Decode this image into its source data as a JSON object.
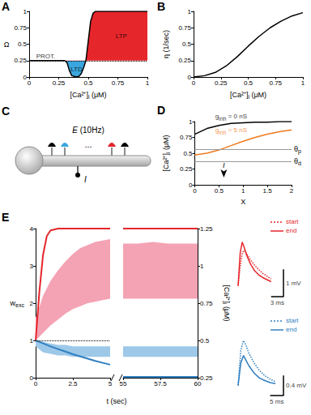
{
  "chart_data": [
    {
      "title": "A",
      "type": "area",
      "x_label": {
        "base": "[Ca²⁺]",
        "sub": "i",
        "rest": " (μM)"
      },
      "y_label": "Ω",
      "xlim": [
        0,
        1
      ],
      "xticks": [
        0,
        0.25,
        0.5,
        0.75,
        1
      ],
      "ylim": [
        0,
        1
      ],
      "yticks": [
        0,
        0.25,
        0.5,
        0.75,
        1
      ],
      "grid": false,
      "x": [
        0,
        0.1,
        0.2,
        0.3,
        0.32,
        0.34,
        0.36,
        0.4,
        0.42,
        0.44,
        0.46,
        0.48,
        0.5,
        0.52,
        0.54,
        0.56,
        0.6,
        0.7,
        0.8,
        0.9,
        1
      ],
      "series": [
        {
          "color": "#000000",
          "values": [
            0.25,
            0.25,
            0.25,
            0.25,
            0.22,
            0.1,
            0.02,
            0,
            0.01,
            0.05,
            0.14,
            0.25,
            0.55,
            0.85,
            0.97,
            1,
            1,
            1,
            1,
            1,
            1
          ]
        }
      ],
      "colors": [
        "#3aa6dd",
        "#e5262b"
      ],
      "reference_line": {
        "y": 0.25,
        "line_style": "dotted"
      },
      "annotations": [
        {
          "text": "PROT.",
          "x": 0.14,
          "y": 0.32
        },
        {
          "text": "LTD",
          "x": 0.4,
          "y": 0.12
        },
        {
          "text": "LTP",
          "x": 0.78,
          "y": 0.62
        }
      ]
    },
    {
      "title": "B",
      "type": "line",
      "x_label": {
        "base": "[Ca²⁺]",
        "sub": "i",
        "rest": " (μM)"
      },
      "y_label": "η (1/sec)",
      "xlim": [
        0,
        1
      ],
      "xticks": [
        0,
        0.25,
        0.5,
        0.75,
        1
      ],
      "ylim": [
        0,
        1
      ],
      "yticks": [
        0,
        0.25,
        0.5,
        0.75,
        1
      ],
      "grid": false,
      "x": [
        0,
        0.1,
        0.2,
        0.3,
        0.4,
        0.5,
        0.6,
        0.7,
        0.8,
        0.9,
        1
      ],
      "series": [
        {
          "color": "#000000",
          "values": [
            0,
            0.02,
            0.07,
            0.17,
            0.31,
            0.47,
            0.62,
            0.75,
            0.85,
            0.93,
            0.98
          ]
        }
      ]
    },
    {
      "title": "D",
      "type": "line",
      "x_label": "X",
      "y_label": {
        "base": "[Ca²⁺]",
        "sub": "i",
        "rest": " (μM)"
      },
      "xlim": [
        0,
        2
      ],
      "xticks": [
        0,
        0.5,
        1,
        1.5,
        2
      ],
      "ylim": [
        0,
        1
      ],
      "yticks": [
        0,
        0.25,
        0.5,
        0.75,
        1
      ],
      "grid": false,
      "x": [
        0,
        0.25,
        0.5,
        0.75,
        1,
        1.25,
        1.5,
        1.75,
        2
      ],
      "series": [
        {
          "color": "#000000",
          "values": [
            0.8,
            0.89,
            0.94,
            0.97,
            0.98,
            0.99,
            0.99,
            1,
            1
          ]
        },
        {
          "color": "#f07a1e",
          "values": [
            0.47,
            0.5,
            0.55,
            0.62,
            0.69,
            0.75,
            0.8,
            0.84,
            0.87
          ]
        }
      ],
      "reference_lines": [
        {
          "y": 0.56,
          "label": {
            "base": "θ",
            "sub": "p"
          },
          "color": "#999999"
        },
        {
          "y": 0.37,
          "label": {
            "base": "θ",
            "sub": "d"
          },
          "color": "#999999"
        }
      ],
      "annotations": [
        {
          "text": {
            "base": "g",
            "sub": "inh",
            "rest": " = 0 nS"
          },
          "x": 0.75,
          "y": 1.08,
          "color": "#000000"
        },
        {
          "text": {
            "base": "g",
            "sub": "inh",
            "rest": " = 5 nS"
          },
          "x": 0.75,
          "y": 0.86,
          "color": "#f07a1e"
        }
      ],
      "arrow": {
        "x": 0.6,
        "label": "I"
      }
    },
    {
      "title": "E",
      "type": "line",
      "x_label": "t (sec)",
      "y_label": {
        "base": "w",
        "sub": "exc"
      },
      "y2_label": {
        "base": "[Ca²⁺]",
        "sub": "i",
        "rest": " (μM)"
      },
      "ylim": [
        0,
        4
      ],
      "yticks": [
        0,
        1,
        2,
        3,
        4
      ],
      "y2lim": [
        0.25,
        1.25
      ],
      "y2ticks": [
        0.25,
        0.5,
        0.75,
        1,
        1.25
      ],
      "grid": false,
      "segments": [
        {
          "xlim": [
            0,
            5
          ],
          "xticks": [
            0,
            2.5,
            5
          ],
          "reference_line": {
            "y": 1,
            "line_style": "dotted"
          },
          "series": [
            {
              "type": "band",
              "axis": "y2",
              "color": "#f4a3b4",
              "x": [
                0,
                0.5,
                1,
                1.5,
                2,
                2.5,
                3,
                3.5,
                4,
                4.5,
                5
              ],
              "upper": [
                0.65,
                0.8,
                0.9,
                0.97,
                1.03,
                1.08,
                1.12,
                1.14,
                1.16,
                1.17,
                1.18
              ],
              "lower": [
                0.5,
                0.55,
                0.6,
                0.64,
                0.68,
                0.71,
                0.73,
                0.75,
                0.76,
                0.77,
                0.78
              ]
            },
            {
              "type": "band",
              "axis": "y2",
              "color": "#9dc8e8",
              "x": [
                0,
                0.5,
                1,
                1.5,
                2,
                2.5,
                3,
                3.5,
                4,
                4.5,
                5
              ],
              "upper": [
                0.5,
                0.49,
                0.48,
                0.47,
                0.47,
                0.46,
                0.46,
                0.46,
                0.46,
                0.46,
                0.46
              ],
              "lower": [
                0.46,
                0.42,
                0.41,
                0.4,
                0.4,
                0.39,
                0.39,
                0.39,
                0.39,
                0.39,
                0.39
              ]
            },
            {
              "type": "line",
              "axis": "y",
              "color": "#e5262b",
              "x": [
                0,
                0.25,
                0.5,
                0.75,
                1,
                1.5,
                2,
                3,
                4,
                5
              ],
              "values": [
                1,
                2.3,
                3.3,
                3.8,
                3.95,
                4,
                4,
                4,
                4,
                4
              ]
            },
            {
              "type": "line",
              "axis": "y",
              "color": "#2f7fc1",
              "x": [
                0,
                0.5,
                1,
                1.5,
                2,
                2.5,
                3,
                3.5,
                4,
                4.5,
                5
              ],
              "values": [
                1,
                0.92,
                0.84,
                0.77,
                0.7,
                0.63,
                0.57,
                0.51,
                0.45,
                0.4,
                0.35
              ]
            }
          ]
        },
        {
          "xlim": [
            55,
            60
          ],
          "xticks": [
            55,
            57.5,
            60
          ],
          "series": [
            {
              "type": "band",
              "axis": "y2",
              "color": "#f4a3b4",
              "x": [
                55,
                56,
                57,
                58,
                59,
                60
              ],
              "upper": [
                1.15,
                1.15,
                1.16,
                1.15,
                1.15,
                1.15
              ],
              "lower": [
                0.78,
                0.78,
                0.78,
                0.78,
                0.78,
                0.78
              ]
            },
            {
              "type": "band",
              "axis": "y2",
              "color": "#9dc8e8",
              "x": [
                55,
                56,
                57,
                58,
                59,
                60
              ],
              "upper": [
                0.46,
                0.46,
                0.46,
                0.46,
                0.46,
                0.46
              ],
              "lower": [
                0.39,
                0.39,
                0.39,
                0.39,
                0.39,
                0.39
              ]
            },
            {
              "type": "line",
              "axis": "y",
              "color": "#e5262b",
              "x": [
                55,
                56,
                57,
                58,
                59,
                60
              ],
              "values": [
                4,
                4,
                4,
                4,
                4,
                4
              ]
            },
            {
              "type": "line",
              "axis": "y",
              "color": "#2f7fc1",
              "x": [
                55,
                56,
                57,
                58,
                59,
                60
              ],
              "values": [
                0.02,
                0.02,
                0.02,
                0.02,
                0.02,
                0.02
              ]
            }
          ]
        }
      ],
      "insets": [
        {
          "xlim": [
            0,
            11
          ],
          "ylim": [
            -0.4,
            1.8
          ],
          "tick_labels": false,
          "series": [
            {
              "name": "start",
              "color": "#e5262b",
              "line_style": "dotted",
              "x": [
                0,
                0.5,
                1,
                1.5,
                2,
                3,
                4,
                5,
                6,
                8
              ],
              "values": [
                0,
                0.7,
                1.2,
                1.3,
                1.2,
                0.95,
                0.75,
                0.6,
                0.45,
                0.25
              ]
            },
            {
              "name": "end",
              "color": "#e5262b",
              "line_style": "solid",
              "x": [
                0,
                0.5,
                1,
                1.5,
                2,
                3,
                4,
                5,
                6,
                8
              ],
              "values": [
                0,
                1.2,
                1.6,
                1.4,
                1.15,
                0.8,
                0.55,
                0.4,
                0.3,
                0.15
              ]
            }
          ],
          "scale_bars": {
            "x": 3,
            "x_label": "3 ms",
            "y": 1,
            "y_label": "1 mV"
          }
        },
        {
          "xlim": [
            0,
            17
          ],
          "ylim": [
            -0.2,
            1
          ],
          "tick_labels": false,
          "series": [
            {
              "name": "start",
              "color": "#2f7fc1",
              "line_style": "dotted",
              "x": [
                0,
                1,
                2,
                3,
                4,
                6,
                8,
                10,
                12,
                14
              ],
              "values": [
                0,
                0.7,
                0.9,
                0.8,
                0.65,
                0.45,
                0.3,
                0.2,
                0.13,
                0.08
              ]
            },
            {
              "name": "end",
              "color": "#2f7fc1",
              "line_style": "solid",
              "x": [
                0,
                1,
                2,
                3,
                4,
                6,
                8,
                10,
                12,
                14
              ],
              "values": [
                0,
                0.45,
                0.6,
                0.5,
                0.4,
                0.25,
                0.15,
                0.1,
                0.06,
                0.04
              ]
            }
          ],
          "scale_bars": {
            "x": 5,
            "x_label": "5 ms",
            "y": 0.4,
            "y_label": "0.4 mV"
          }
        }
      ]
    }
  ],
  "diagram": {
    "title": "C",
    "excitatory_label": {
      "base": "E",
      "rest": " (10Hz)"
    },
    "ellipsis": "...",
    "inhibitory_label": "I",
    "synapse_colors": [
      "#000000",
      "#3aa6dd",
      "#e5262b",
      "#000000"
    ]
  }
}
